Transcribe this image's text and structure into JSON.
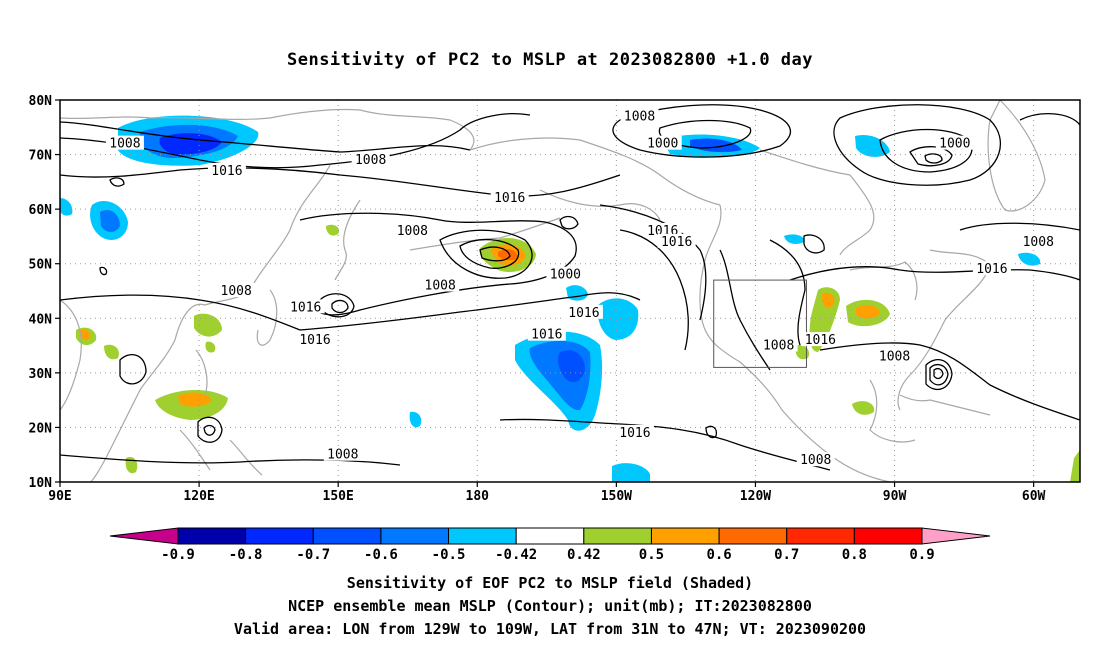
{
  "title": "Sensitivity of PC2 to MSLP at 2023082800 +1.0 day",
  "map": {
    "lon_range": [
      90,
      310
    ],
    "lat_range": [
      10,
      80
    ],
    "lat_labels": [
      "80N",
      "70N",
      "60N",
      "50N",
      "40N",
      "30N",
      "20N",
      "10N"
    ],
    "lon_labels": [
      "90E",
      "120E",
      "150E",
      "180",
      "150W",
      "120W",
      "90W",
      "60W"
    ],
    "valid_box": {
      "lon_min": 231,
      "lon_max": 251,
      "lat_min": 31,
      "lat_max": 47
    },
    "colors": {
      "coast": "#a8a8a8",
      "grid": "#9a9a9a",
      "contour": "#000000",
      "box": "#555555"
    }
  },
  "contour_labels": [
    {
      "text": "1008",
      "lon": 104,
      "lat": 72
    },
    {
      "text": "1008",
      "lon": 157,
      "lat": 69
    },
    {
      "text": "1016",
      "lon": 126,
      "lat": 67
    },
    {
      "text": "1008",
      "lon": 215,
      "lat": 77
    },
    {
      "text": "1000",
      "lon": 220,
      "lat": 72
    },
    {
      "text": "1000",
      "lon": 283,
      "lat": 72
    },
    {
      "text": "1016",
      "lon": 187,
      "lat": 62
    },
    {
      "text": "1008",
      "lon": 166,
      "lat": 56
    },
    {
      "text": "1016",
      "lon": 220,
      "lat": 56
    },
    {
      "text": "1016",
      "lon": 223,
      "lat": 54
    },
    {
      "text": "1008",
      "lon": 301,
      "lat": 54
    },
    {
      "text": "1016",
      "lon": 291,
      "lat": 49
    },
    {
      "text": "1000",
      "lon": 199,
      "lat": 48
    },
    {
      "text": "1008",
      "lon": 128,
      "lat": 45
    },
    {
      "text": "1008",
      "lon": 172,
      "lat": 46
    },
    {
      "text": "1016",
      "lon": 143,
      "lat": 42
    },
    {
      "text": "1016",
      "lon": 203,
      "lat": 41
    },
    {
      "text": "1016",
      "lon": 195,
      "lat": 37
    },
    {
      "text": "1016",
      "lon": 145,
      "lat": 36
    },
    {
      "text": "1008",
      "lon": 245,
      "lat": 35
    },
    {
      "text": "1016",
      "lon": 254,
      "lat": 36
    },
    {
      "text": "1008",
      "lon": 270,
      "lat": 33
    },
    {
      "text": "1016",
      "lon": 214,
      "lat": 19
    },
    {
      "text": "1008",
      "lon": 151,
      "lat": 15
    },
    {
      "text": "1008",
      "lon": 253,
      "lat": 14
    }
  ],
  "colorbar": {
    "labels": [
      "-0.9",
      "-0.8",
      "-0.7",
      "-0.6",
      "-0.5",
      "-0.42",
      "0.42",
      "0.5",
      "0.6",
      "0.7",
      "0.8",
      "0.9"
    ],
    "colors": [
      "#c6008a",
      "#0000aa",
      "#0028ff",
      "#0050ff",
      "#0078ff",
      "#00c8ff",
      "#ffffff",
      "#a0d030",
      "#ffa000",
      "#ff6a00",
      "#ff2800",
      "#ff0000",
      "#ffa0c8"
    ]
  },
  "footer": {
    "line1": "Sensitivity of EOF PC2 to MSLP field (Shaded)",
    "line2": "NCEP ensemble mean MSLP (Contour); unit(mb); IT:2023082800",
    "line3": "Valid area: LON from 129W to 109W, LAT from 31N to 47N; VT: 2023090200"
  }
}
